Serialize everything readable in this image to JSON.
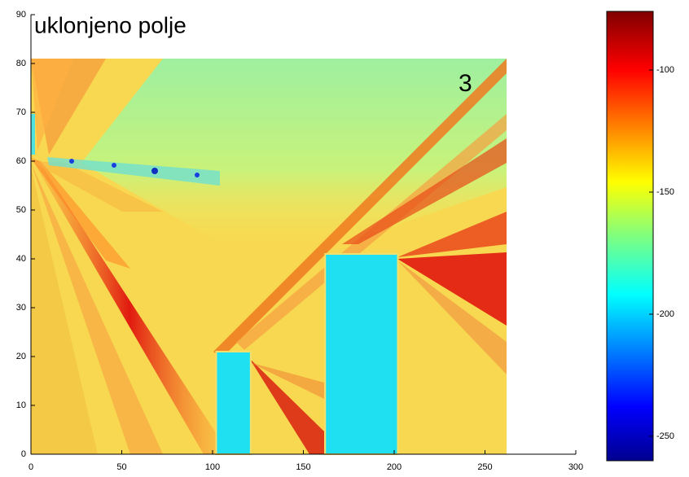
{
  "chart_data": {
    "type": "field",
    "title": "uklonjeno polje",
    "annotation": "3",
    "xlim": [
      0,
      300
    ],
    "xticks": [
      0,
      50,
      100,
      150,
      200,
      250,
      300
    ],
    "ylim": [
      0,
      90
    ],
    "yticks": [
      0,
      10,
      20,
      30,
      40,
      50,
      60,
      70,
      80,
      90
    ],
    "obstacles": [
      {
        "x": [
          102,
          121
        ],
        "y": [
          0,
          21
        ]
      },
      {
        "x": [
          162,
          202
        ],
        "y": [
          0,
          41
        ]
      }
    ],
    "obstacle_color": "#1ee0f0",
    "colorbar": {
      "clim": [
        -260,
        -76
      ],
      "ticks": [
        -250,
        -200,
        -150,
        -100
      ]
    }
  }
}
